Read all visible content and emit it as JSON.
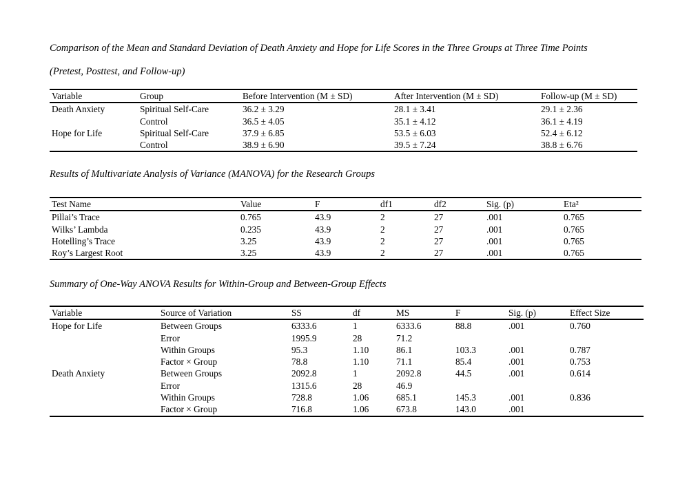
{
  "page": {
    "background_color": "#ffffff",
    "text_color": "#000000",
    "table_rule_color": "#000000",
    "spellcheck_underline_color": "#ff0000"
  },
  "sections": [
    {
      "caption_lines": [
        "Comparison of the Mean and Standard Deviation of Death Anxiety and Hope for Life Scores in the Three Groups at Three Time Points",
        "(Pretest, Posttest, and Follow-up)"
      ],
      "table": {
        "headers": [
          "Variable",
          "Group",
          "Before Intervention (M ± SD)",
          "After Intervention (M ± SD)",
          "Follow-up (M ± SD)"
        ],
        "flagged_headers": [],
        "rows": [
          [
            "Death Anxiety",
            "Spiritual Self-Care",
            "36.2 ± 3.29",
            "28.1 ± 3.41",
            "29.1 ± 2.36"
          ],
          [
            "",
            "Control",
            "36.5 ± 4.05",
            "35.1 ± 4.12",
            "36.1 ± 4.19"
          ],
          [
            "Hope for Life",
            "Spiritual Self-Care",
            "37.9 ± 6.85",
            "53.5 ± 6.03",
            "52.4 ± 6.12"
          ],
          [
            "",
            "Control",
            "38.9 ± 6.90",
            "39.5 ± 7.24",
            "38.8 ± 6.76"
          ]
        ]
      }
    },
    {
      "caption_lines": [
        "Results of Multivariate Analysis of Variance (MANOVA) for the Research Groups"
      ],
      "table": {
        "headers": [
          "Test Name",
          "Value",
          "F",
          "df1",
          "df2",
          "Sig. (p)",
          "Eta²"
        ],
        "flagged_headers": [],
        "rows": [
          [
            "Pillai’s Trace",
            "0.765",
            "43.9",
            "2",
            "27",
            ".001",
            "0.765"
          ],
          [
            "Wilks’ Lambda",
            "0.235",
            "43.9",
            "2",
            "27",
            ".001",
            "0.765"
          ],
          [
            "Hotelling’s Trace",
            "3.25",
            "43.9",
            "2",
            "27",
            ".001",
            "0.765"
          ],
          [
            "Roy’s Largest Root",
            "3.25",
            "43.9",
            "2",
            "27",
            ".001",
            "0.765"
          ]
        ]
      }
    },
    {
      "caption_lines": [
        "Summary of One-Way ANOVA Results for Within-Group and Between-Group Effects"
      ],
      "table": {
        "headers": [
          "Variable",
          "Source of Variation",
          "SS",
          "df",
          "MS",
          "F",
          "Sig. (p)",
          "Effect Size"
        ],
        "flagged_headers": [
          "df"
        ],
        "rows": [
          [
            "Hope for Life",
            "Between Groups",
            "6333.6",
            "1",
            "6333.6",
            "88.8",
            ".001",
            "0.760"
          ],
          [
            "",
            "Error",
            "1995.9",
            "28",
            "71.2",
            "",
            "",
            ""
          ],
          [
            "",
            "Within Groups",
            "95.3",
            "1.10",
            "86.1",
            "103.3",
            ".001",
            "0.787"
          ],
          [
            "",
            "Factor × Group",
            "78.8",
            "1.10",
            "71.1",
            "85.4",
            ".001",
            "0.753"
          ],
          [
            "Death Anxiety",
            "Between Groups",
            "2092.8",
            "1",
            "2092.8",
            "44.5",
            ".001",
            "0.614"
          ],
          [
            "",
            "Error",
            "1315.6",
            "28",
            "46.9",
            "",
            "",
            ""
          ],
          [
            "",
            "Within Groups",
            "728.8",
            "1.06",
            "685.1",
            "145.3",
            ".001",
            "0.836"
          ],
          [
            "",
            "Factor × Group",
            "716.8",
            "1.06",
            "673.8",
            "143.0",
            ".001",
            ""
          ]
        ]
      }
    }
  ]
}
